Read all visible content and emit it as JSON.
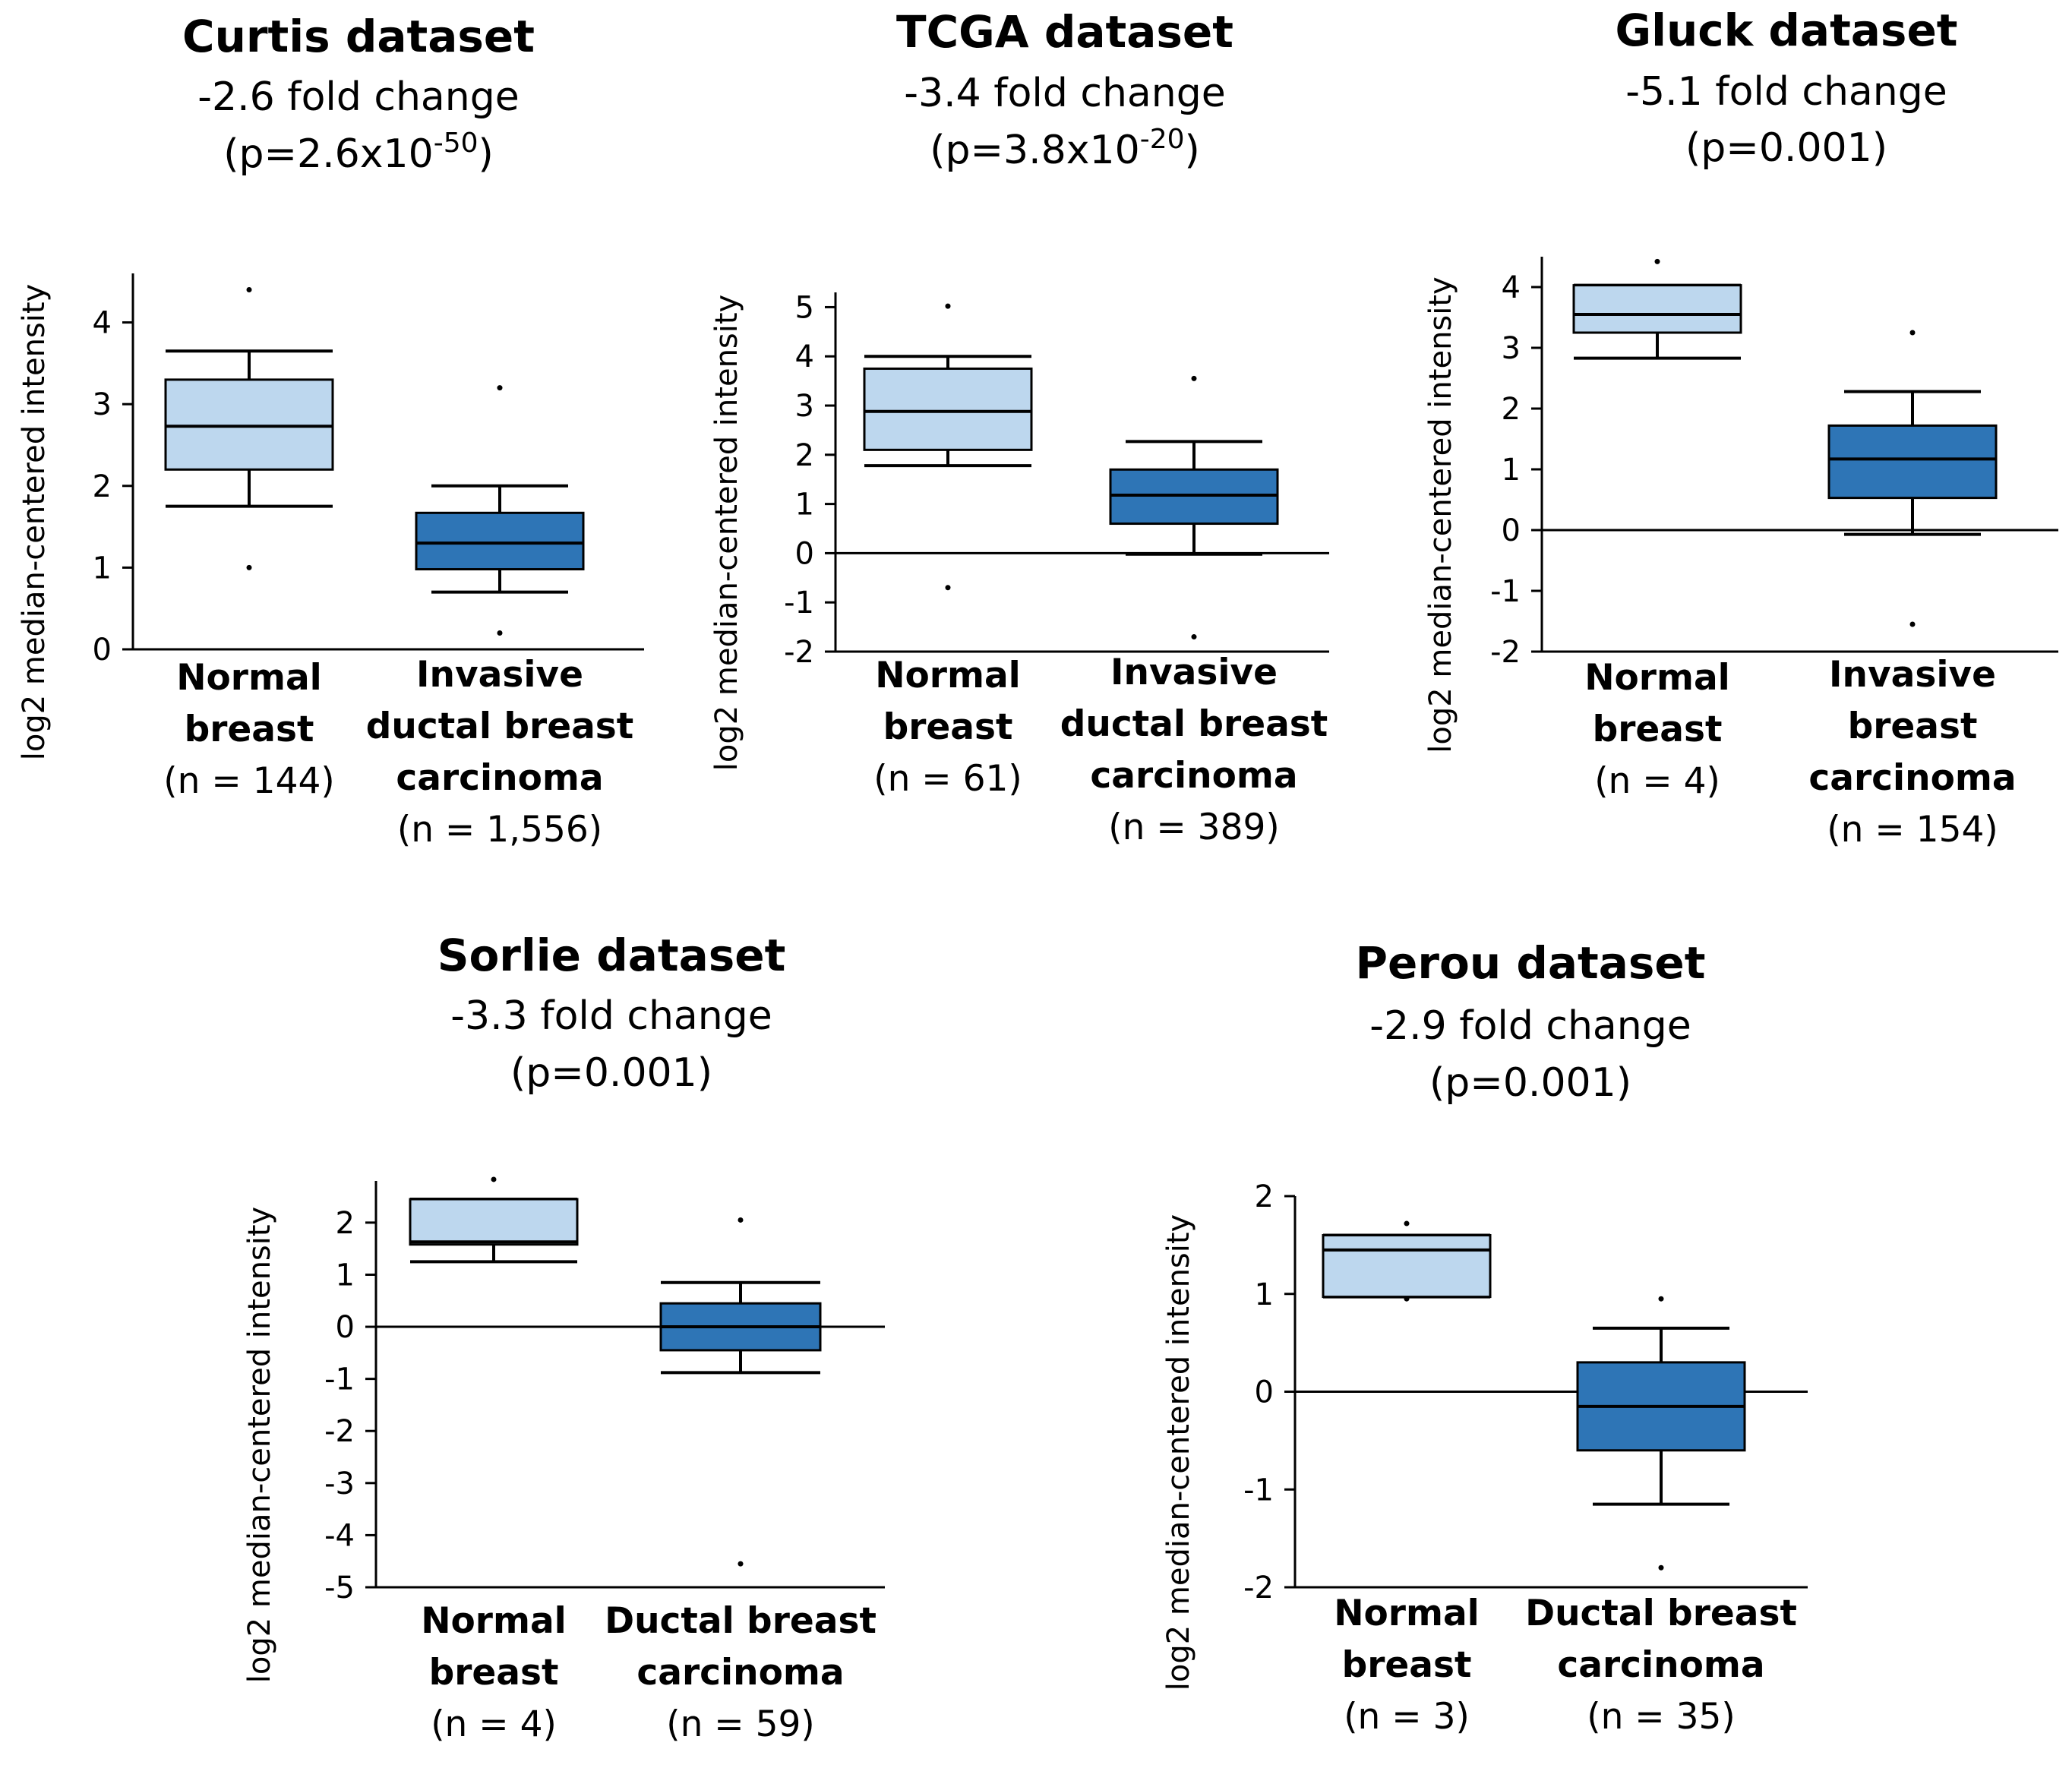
{
  "colors": {
    "normal_box": "#bdd7ee",
    "tumor_box": "#2e75b6",
    "ink": "#000000"
  },
  "chart_data": [
    {
      "type": "box",
      "title": "Curtis dataset",
      "fold_change": "-2.6 fold change",
      "p_prefix": "(p=2.6x10",
      "p_exp": "-50",
      "p_suffix": ")",
      "ylabel": "log2 median-centered intensity",
      "ylim": [
        0,
        4.6
      ],
      "yticks": [
        0,
        1,
        2,
        3,
        4
      ],
      "zero_line": false,
      "groups": [
        {
          "label_lines": [
            "Normal",
            "breast"
          ],
          "n_label": "(n = 144)",
          "min": 1.75,
          "q1": 2.2,
          "median": 2.73,
          "q3": 3.3,
          "max": 3.65,
          "outliers": [
            1.0,
            4.4
          ]
        },
        {
          "label_lines": [
            "Invasive",
            "ductal breast",
            "carcinoma"
          ],
          "n_label": "(n = 1,556)",
          "min": 0.7,
          "q1": 0.98,
          "median": 1.3,
          "q3": 1.67,
          "max": 2.0,
          "outliers": [
            0.2,
            3.2
          ]
        }
      ]
    },
    {
      "type": "box",
      "title": "TCGA dataset",
      "fold_change": "-3.4 fold change",
      "p_prefix": "(p=3.8x10",
      "p_exp": "-20",
      "p_suffix": ")",
      "ylabel": "log2 median-centered intensity",
      "ylim": [
        -2,
        5.3
      ],
      "yticks": [
        -2,
        -1,
        0,
        1,
        2,
        3,
        4,
        5
      ],
      "zero_line": true,
      "groups": [
        {
          "label_lines": [
            "Normal",
            "breast"
          ],
          "n_label": "(n = 61)",
          "min": 1.78,
          "q1": 2.1,
          "median": 2.88,
          "q3": 3.75,
          "max": 4.0,
          "outliers": [
            -0.7,
            5.02
          ]
        },
        {
          "label_lines": [
            "Invasive",
            "ductal breast",
            "carcinoma"
          ],
          "n_label": "(n = 389)",
          "min": -0.02,
          "q1": 0.6,
          "median": 1.18,
          "q3": 1.7,
          "max": 2.27,
          "outliers": [
            -1.7,
            3.55
          ]
        }
      ]
    },
    {
      "type": "box",
      "title": "Gluck dataset",
      "fold_change": "-5.1 fold change",
      "p_prefix": "(p=0.001)",
      "p_exp": "",
      "p_suffix": "",
      "ylabel": "log2 median-centered intensity",
      "ylim": [
        -2,
        4.5
      ],
      "yticks": [
        -2,
        -1,
        0,
        1,
        2,
        3,
        4
      ],
      "zero_line": true,
      "groups": [
        {
          "label_lines": [
            "Normal",
            "breast"
          ],
          "n_label": "(n = 4)",
          "min": 2.83,
          "q1": 3.25,
          "median": 3.55,
          "q3": 4.03,
          "max": 4.03,
          "outliers": [
            4.42
          ]
        },
        {
          "label_lines": [
            "Invasive",
            "breast",
            "carcinoma"
          ],
          "n_label": "(n = 154)",
          "min": -0.07,
          "q1": 0.53,
          "median": 1.17,
          "q3": 1.72,
          "max": 2.28,
          "outliers": [
            -1.55,
            3.25
          ]
        }
      ]
    },
    {
      "type": "box",
      "title": "Sorlie dataset",
      "fold_change": "-3.3 fold change",
      "p_prefix": "(p=0.001)",
      "p_exp": "",
      "p_suffix": "",
      "ylabel": "log2 median-centered intensity",
      "ylim": [
        -5,
        2.8
      ],
      "yticks": [
        -5,
        -4,
        -3,
        -2,
        -1,
        0,
        1,
        2
      ],
      "zero_line": true,
      "groups": [
        {
          "label_lines": [
            "Normal",
            "breast"
          ],
          "n_label": "(n = 4)",
          "min": 1.25,
          "q1": 1.58,
          "median": 1.63,
          "q3": 2.45,
          "max": 2.45,
          "outliers": [
            2.83
          ]
        },
        {
          "label_lines": [
            "Ductal breast",
            "carcinoma"
          ],
          "n_label": "(n = 59)",
          "min": -0.88,
          "q1": -0.45,
          "median": 0.0,
          "q3": 0.45,
          "max": 0.85,
          "outliers": [
            -4.55,
            2.05
          ]
        }
      ]
    },
    {
      "type": "box",
      "title": "Perou dataset",
      "fold_change": "-2.9 fold change",
      "p_prefix": "(p=0.001)",
      "p_exp": "",
      "p_suffix": "",
      "ylabel": "log2 median-centered intensity",
      "ylim": [
        -2,
        2.0
      ],
      "yticks": [
        -2,
        -1,
        0,
        1,
        2
      ],
      "zero_line": true,
      "groups": [
        {
          "label_lines": [
            "Normal",
            "breast"
          ],
          "n_label": "(n = 3)",
          "min": 0.97,
          "q1": 0.97,
          "median": 1.45,
          "q3": 1.6,
          "max": 1.6,
          "outliers": [
            1.72,
            0.95
          ]
        },
        {
          "label_lines": [
            "Ductal breast",
            "carcinoma"
          ],
          "n_label": "(n = 35)",
          "min": -1.15,
          "q1": -0.6,
          "median": -0.15,
          "q3": 0.3,
          "max": 0.65,
          "outliers": [
            -1.8,
            0.95
          ]
        }
      ]
    }
  ]
}
